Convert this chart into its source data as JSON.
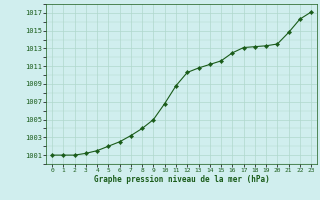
{
  "x": [
    0,
    1,
    2,
    3,
    4,
    5,
    6,
    7,
    8,
    9,
    10,
    11,
    12,
    13,
    14,
    15,
    16,
    17,
    18,
    19,
    20,
    21,
    22,
    23
  ],
  "y": [
    1001.0,
    1001.0,
    1001.0,
    1001.2,
    1001.5,
    1002.0,
    1002.5,
    1003.2,
    1004.0,
    1005.0,
    1006.8,
    1008.8,
    1010.3,
    1010.8,
    1011.2,
    1011.6,
    1012.5,
    1013.1,
    1013.2,
    1013.3,
    1013.5,
    1014.8,
    1016.3,
    1017.1
  ],
  "line_color": "#1a5c1a",
  "marker_color": "#1a5c1a",
  "bg_color": "#d0eeee",
  "grid_color": "#b0d8cc",
  "xlabel": "Graphe pression niveau de la mer (hPa)",
  "ylabel_ticks": [
    1001,
    1003,
    1005,
    1007,
    1009,
    1011,
    1013,
    1015,
    1017
  ],
  "ylim": [
    1000.0,
    1018.0
  ],
  "xlim": [
    -0.5,
    23.5
  ],
  "xticks": [
    0,
    1,
    2,
    3,
    4,
    5,
    6,
    7,
    8,
    9,
    10,
    11,
    12,
    13,
    14,
    15,
    16,
    17,
    18,
    19,
    20,
    21,
    22,
    23
  ]
}
